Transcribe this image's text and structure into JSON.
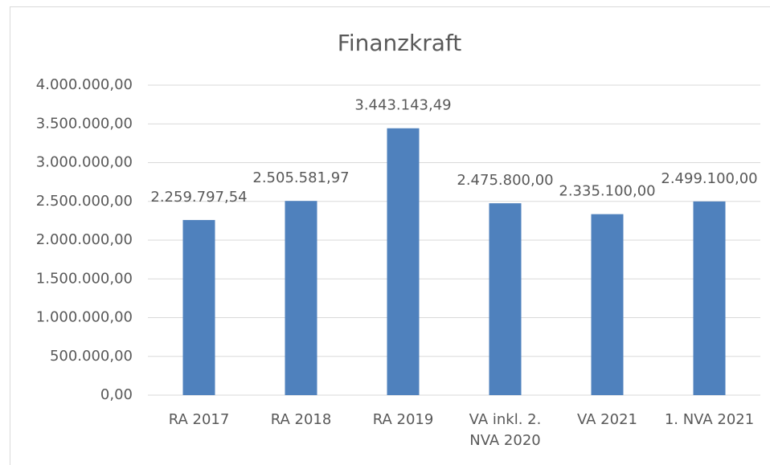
{
  "chart_data": {
    "type": "bar",
    "title": "Finanzkraft",
    "categories": [
      "RA 2017",
      "RA 2018",
      "RA 2019",
      "VA inkl. 2. NVA 2020",
      "VA 2021",
      "1. NVA 2021"
    ],
    "values": [
      2259797.54,
      2505581.97,
      3443143.49,
      2475800,
      2335100,
      2499100
    ],
    "value_labels": [
      "2.259.797,54",
      "2.505.581,97",
      "3.443.143,49",
      "2.475.800,00",
      "2.335.100,00",
      "2.499.100,00"
    ],
    "color": "#4f81bd",
    "ylim": [
      0,
      4000000
    ],
    "yticks": [
      {
        "value": 0,
        "label": "0,00"
      },
      {
        "value": 500000,
        "label": "500.000,00"
      },
      {
        "value": 1000000,
        "label": "1.000.000,00"
      },
      {
        "value": 1500000,
        "label": "1.500.000,00"
      },
      {
        "value": 2000000,
        "label": "2.000.000,00"
      },
      {
        "value": 2500000,
        "label": "2.500.000,00"
      },
      {
        "value": 3000000,
        "label": "3.000.000,00"
      },
      {
        "value": 3500000,
        "label": "3.500.000,00"
      },
      {
        "value": 4000000,
        "label": "4.000.000,00"
      }
    ],
    "grid": true
  }
}
